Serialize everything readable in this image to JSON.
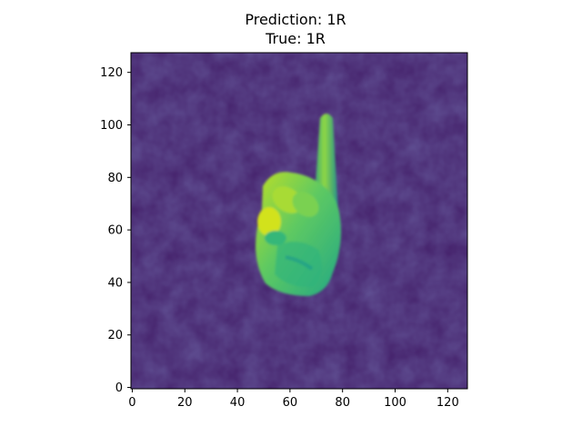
{
  "title_lines": [
    "Prediction: 1R",
    "True: 1R"
  ],
  "x_axis": {
    "ticks": [
      0,
      20,
      40,
      60,
      80,
      100,
      120
    ],
    "range": [
      -0.5,
      127.5
    ]
  },
  "y_axis": {
    "ticks": [
      0,
      20,
      40,
      60,
      80,
      100,
      120
    ],
    "range": [
      127.5,
      -0.5
    ]
  },
  "colors": {
    "background_purple": "#45155f",
    "background_blue": "#3a4f8a",
    "hand_green": "#2fb47c",
    "hand_yellow": "#bddf26",
    "hand_bright": "#fde725"
  }
}
